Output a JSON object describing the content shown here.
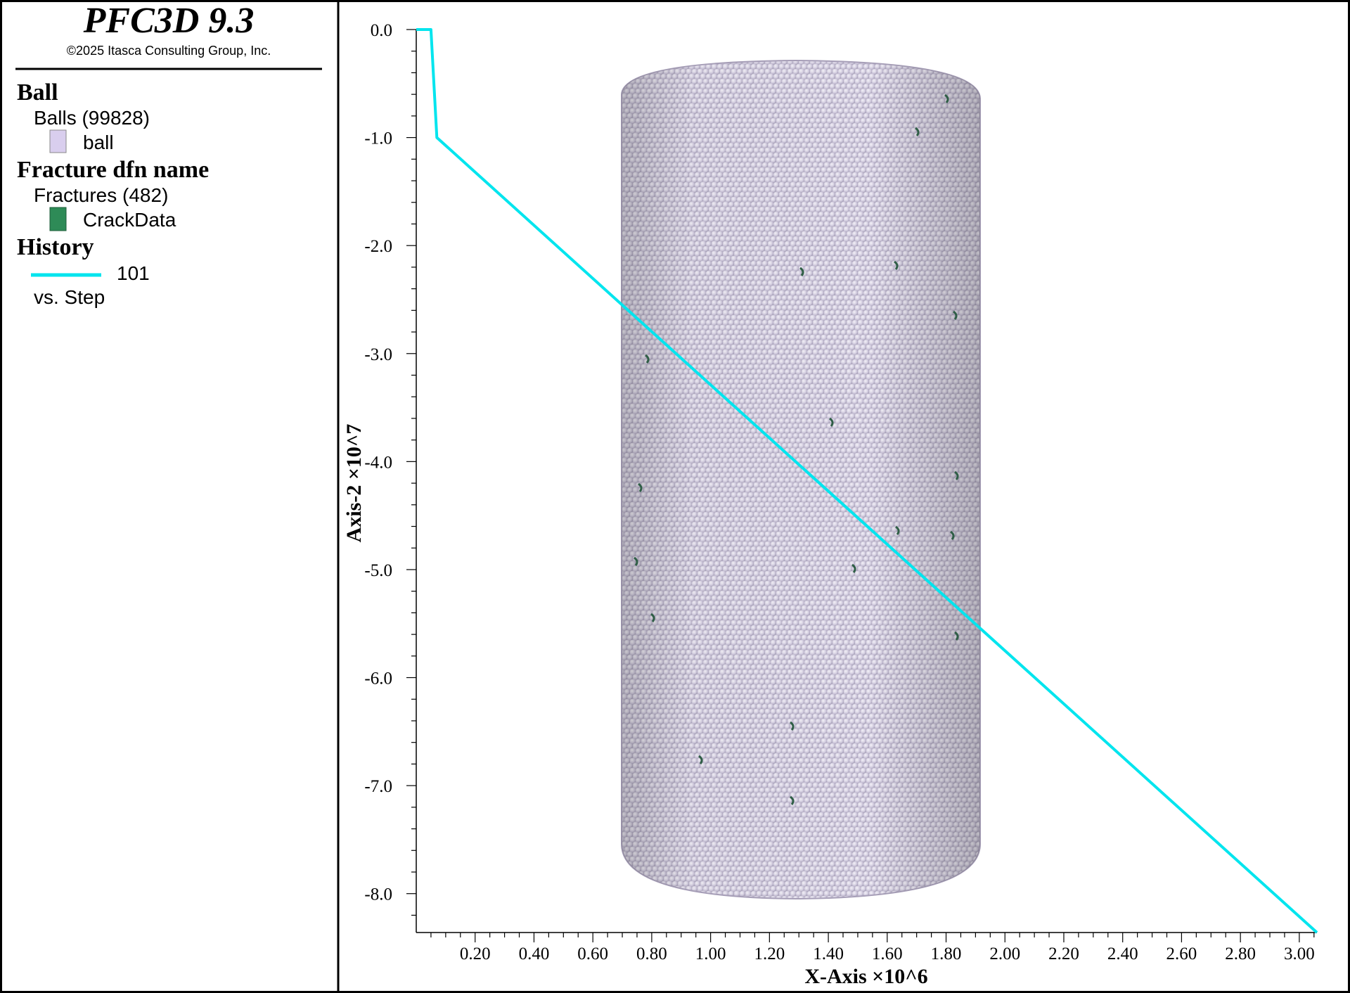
{
  "app": {
    "title": "PFC3D 9.3",
    "copyright": "©2025 Itasca Consulting Group, Inc."
  },
  "legend": {
    "ball": {
      "heading": "Ball",
      "group": "Balls (99828)",
      "item_label": "ball",
      "item_color": "#d9ceee"
    },
    "fracture": {
      "heading": "Fracture dfn name",
      "group": "Fractures (482)",
      "item_label": "CrackData",
      "item_color": "#2e8b57"
    },
    "history": {
      "heading": "History",
      "item_label": "101",
      "item_color": "#00e5ee",
      "subtitle": "vs. Step"
    }
  },
  "colors": {
    "ball_fill": "#d9d4e6",
    "ball_shadow": "#a9a2ba",
    "crack": "#2f5e46",
    "history_line": "#00e5ee"
  },
  "chart_data": {
    "type": "line",
    "xlabel": "X-Axis ×10^6",
    "ylabel": "Axis-2 ×10^7",
    "xlim": [
      0,
      3.06
    ],
    "ylim": [
      -8.36,
      0
    ],
    "x_ticks": [
      0.2,
      0.4,
      0.6,
      0.8,
      1.0,
      1.2,
      1.4,
      1.6,
      1.8,
      2.0,
      2.2,
      2.4,
      2.6,
      2.8,
      3.0
    ],
    "x_tick_labels": [
      "0.20",
      "0.40",
      "0.60",
      "0.80",
      "1.00",
      "1.20",
      "1.40",
      "1.60",
      "1.80",
      "2.00",
      "2.20",
      "2.40",
      "2.60",
      "2.80",
      "3.00"
    ],
    "y_ticks": [
      0,
      -1,
      -2,
      -3,
      -4,
      -5,
      -6,
      -7,
      -8
    ],
    "y_tick_labels": [
      "0.0",
      "-1.0",
      "-2.0",
      "-3.0",
      "-4.0",
      "-5.0",
      "-6.0",
      "-7.0",
      "-8.0"
    ],
    "grid": false,
    "legend_position": "left-panel",
    "series": [
      {
        "name": "101",
        "x": [
          0,
          0.05,
          0.07,
          3.06
        ],
        "y": [
          0,
          0,
          -1.0,
          -8.36
        ]
      }
    ]
  }
}
